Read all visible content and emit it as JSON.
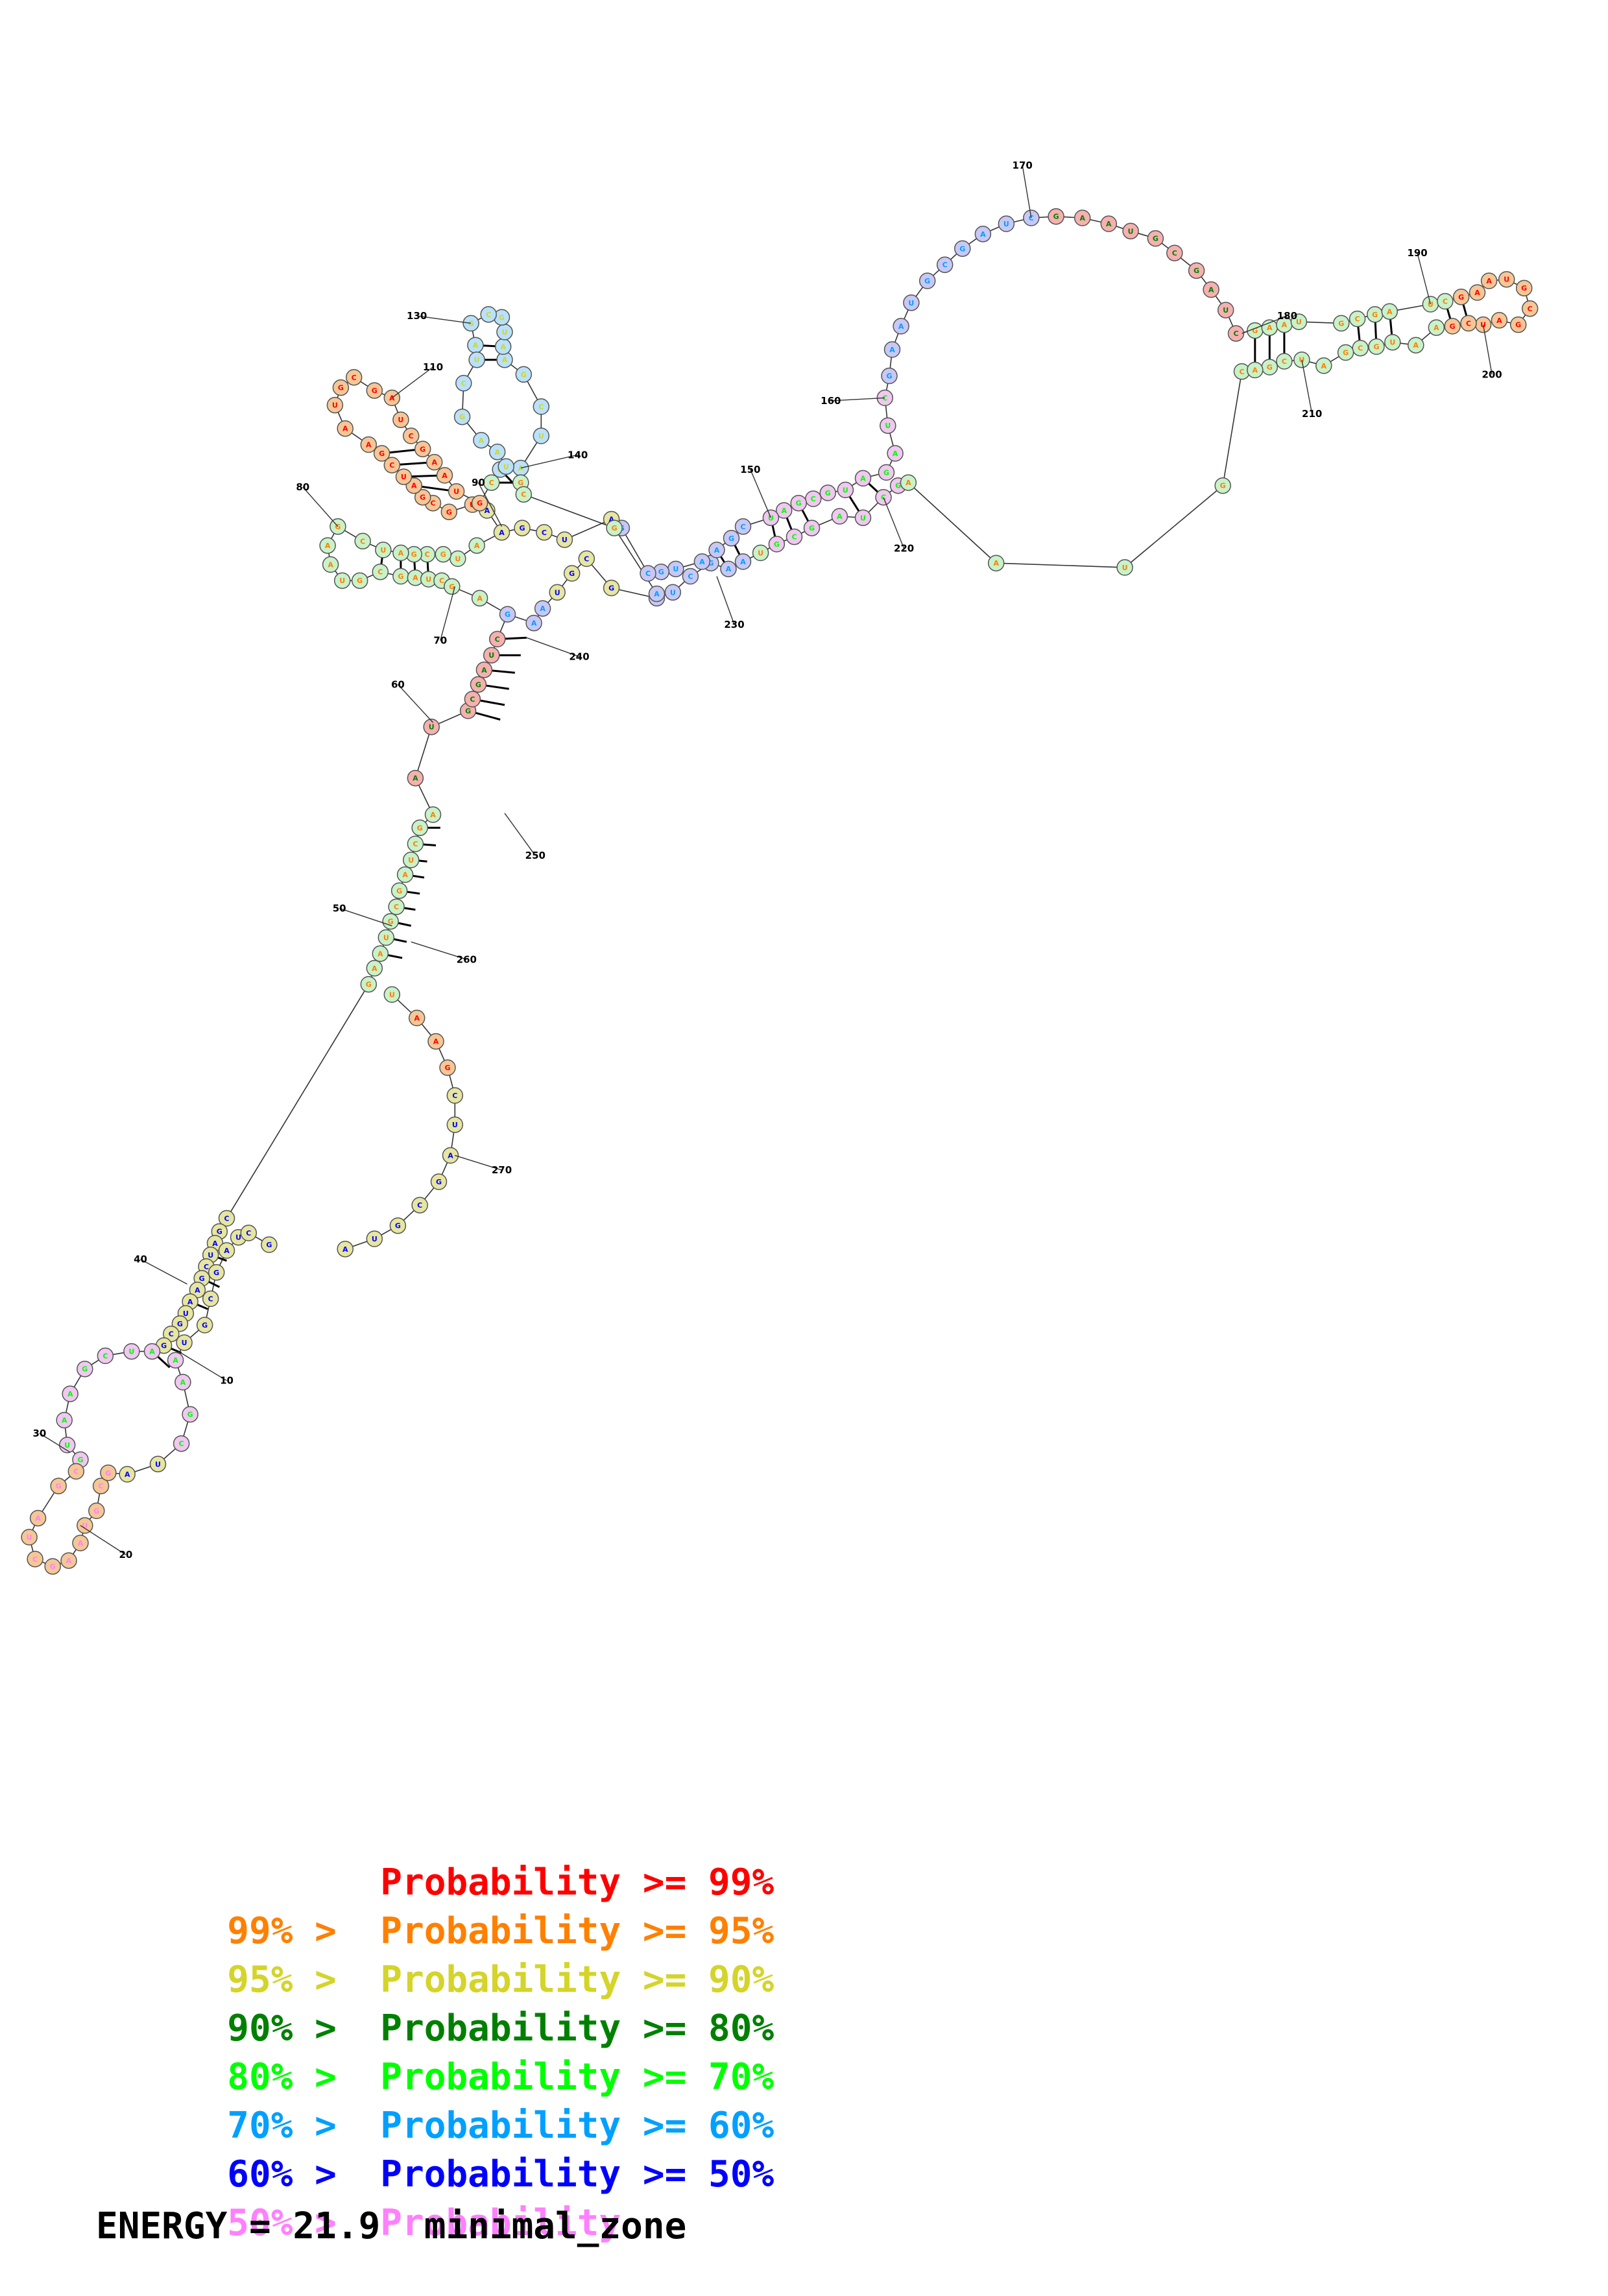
{
  "diagram": {
    "position_labels": [
      "10",
      "20",
      "30",
      "40",
      "50",
      "60",
      "70",
      "80",
      "90",
      "110",
      "130",
      "140",
      "150",
      "160",
      "170",
      "180",
      "190",
      "200",
      "210",
      "220",
      "230",
      "240",
      "250",
      "260",
      "270"
    ]
  },
  "legend": [
    {
      "range": "",
      "label": "Probability >= 99%",
      "color": "#ff0000"
    },
    {
      "range": "99% > ",
      "label": "Probability >= 95%",
      "color": "#ff8000"
    },
    {
      "range": "95% > ",
      "label": "Probability >= 90%",
      "color": "#d4d42a"
    },
    {
      "range": "90% > ",
      "label": "Probability >= 80%",
      "color": "#008000"
    },
    {
      "range": "80% > ",
      "label": "Probability >= 70%",
      "color": "#00ff00"
    },
    {
      "range": "70% > ",
      "label": "Probability >= 60%",
      "color": "#00a0ff"
    },
    {
      "range": "60% > ",
      "label": "Probability >= 50%",
      "color": "#0000ff"
    },
    {
      "range": "50% > ",
      "label": "Probability",
      "color": "#ff80ff"
    }
  ],
  "energy_text": "ENERGY = 21.9  minimal_zone",
  "fill_colors": [
    "#ffffff",
    "#f6c796",
    "#c9f2c9",
    "#b9e2fa",
    "#f6b0b0",
    "#f0c8f0",
    "#c8c8f6",
    "#e6e6a0"
  ],
  "ink_colors": [
    "#ff0000",
    "#ff8000",
    "#d4d42a",
    "#008000",
    "#00ff00",
    "#00a0ff",
    "#0000ff",
    "#ff80ff"
  ]
}
